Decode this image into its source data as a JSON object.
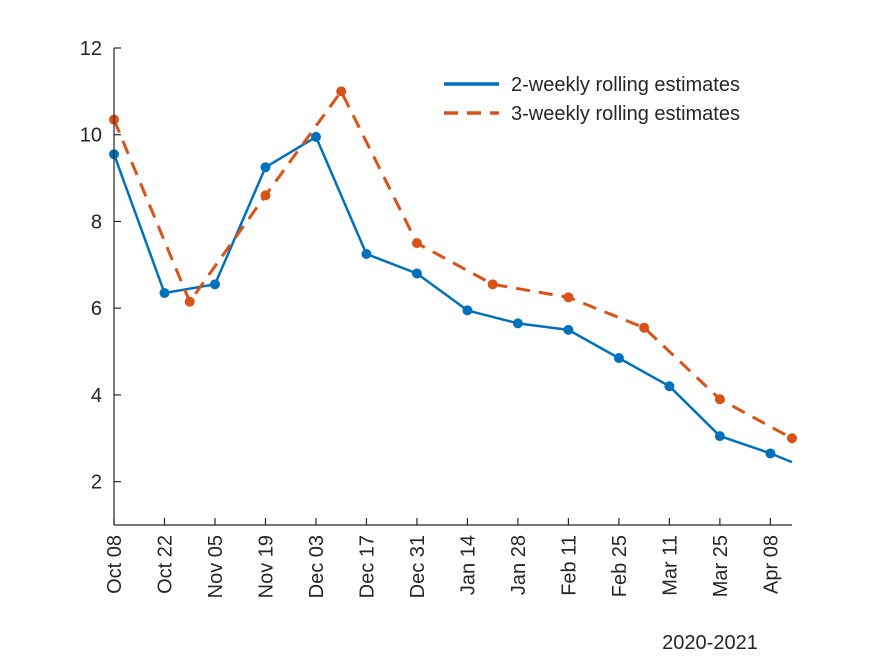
{
  "chart_data": {
    "type": "line",
    "title": "",
    "xlabel": "2020-2021",
    "ylabel": "",
    "ylim": [
      1,
      12
    ],
    "xlim_days": [
      0,
      188
    ],
    "x_ticks": [
      {
        "label": "Oct 08",
        "day": 0
      },
      {
        "label": "Oct 22",
        "day": 14
      },
      {
        "label": "Nov 05",
        "day": 28
      },
      {
        "label": "Nov 19",
        "day": 42
      },
      {
        "label": "Dec 03",
        "day": 56
      },
      {
        "label": "Dec 17",
        "day": 70
      },
      {
        "label": "Dec 31",
        "day": 84
      },
      {
        "label": "Jan 14",
        "day": 98
      },
      {
        "label": "Jan 28",
        "day": 112
      },
      {
        "label": "Feb 11",
        "day": 126
      },
      {
        "label": "Feb 25",
        "day": 140
      },
      {
        "label": "Mar 11",
        "day": 154
      },
      {
        "label": "Mar 25",
        "day": 168
      },
      {
        "label": "Apr 08",
        "day": 182
      }
    ],
    "y_ticks": [
      2,
      4,
      6,
      8,
      10,
      12
    ],
    "legend_position": "top-right",
    "series": [
      {
        "name": "2-weekly rolling estimates",
        "color": "#0072BD",
        "dash": "solid",
        "days": [
          0,
          14,
          28,
          42,
          56,
          70,
          84,
          98,
          112,
          126,
          140,
          154,
          168,
          182,
          188
        ],
        "values": [
          9.55,
          6.35,
          6.55,
          9.25,
          9.95,
          7.25,
          6.8,
          5.95,
          5.65,
          5.5,
          4.85,
          4.2,
          3.05,
          2.65,
          2.45
        ],
        "markers": [
          true,
          true,
          true,
          true,
          true,
          true,
          true,
          true,
          true,
          true,
          true,
          true,
          true,
          true,
          false
        ]
      },
      {
        "name": "3-weekly rolling estimates",
        "color": "#D95319",
        "dash": "dashed",
        "days": [
          0,
          21,
          42,
          63,
          84,
          105,
          126,
          147,
          168,
          188
        ],
        "values": [
          10.35,
          6.15,
          8.6,
          11.0,
          7.5,
          6.55,
          6.25,
          5.55,
          3.9,
          3.0
        ],
        "markers": [
          true,
          true,
          true,
          true,
          true,
          true,
          true,
          true,
          true,
          true
        ]
      }
    ]
  }
}
